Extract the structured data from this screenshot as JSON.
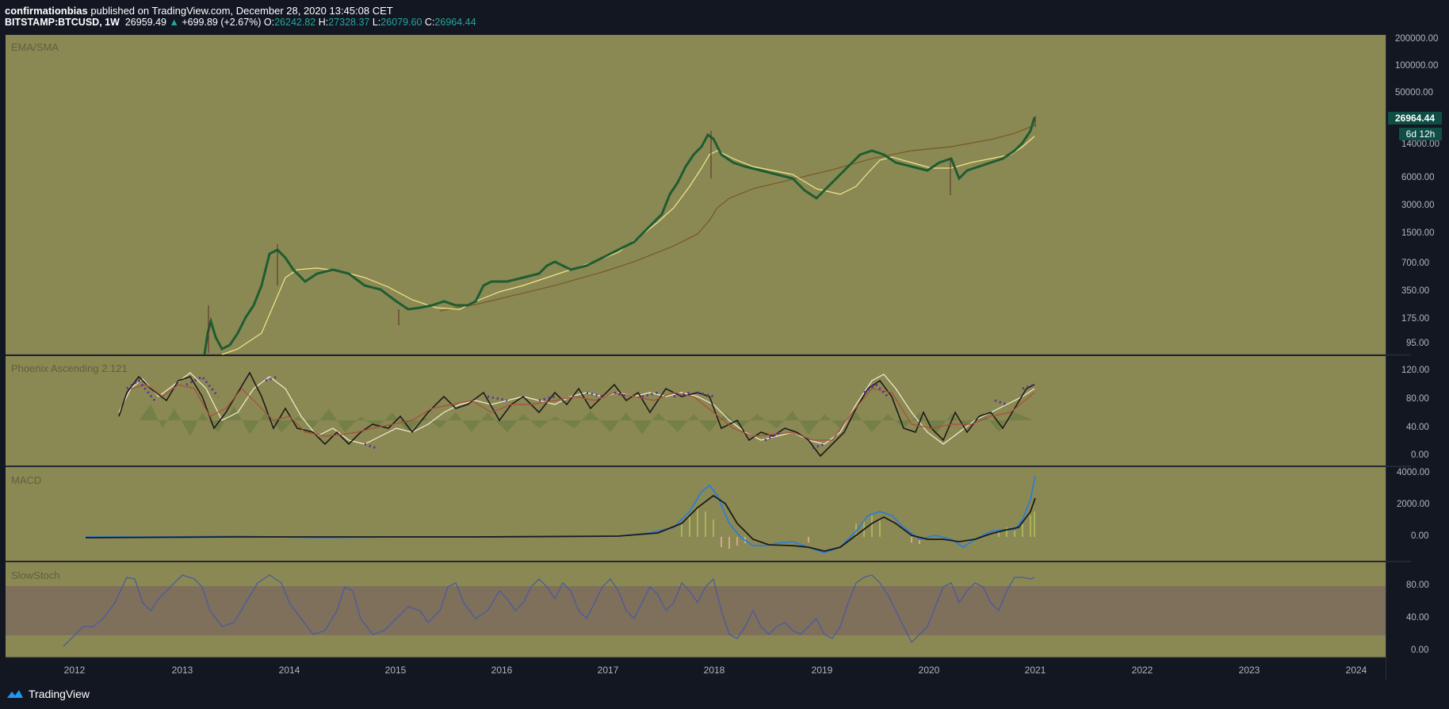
{
  "header": {
    "author": "confirmationbias",
    "published_text": "published on TradingView.com, December 28, 2020 13:45:08 CET",
    "symbol": "BITSTAMP:BTCUSD, 1W",
    "last": "26959.49",
    "change_arrow": "▲",
    "change": "+699.89 (+2.67%)",
    "open_label": "O:",
    "open": "26242.82",
    "high_label": "H:",
    "high": "27328.37",
    "low_label": "L:",
    "low": "26079.60",
    "close_label": "C:",
    "close": "26964.44"
  },
  "panes": {
    "main": {
      "title": "EMA/SMA",
      "price_label": "26964.44",
      "countdown": "6d 12h",
      "y_ticks": [
        "200000.00",
        "100000.00",
        "50000.00",
        "14000.00",
        "6000.00",
        "3000.00",
        "1500.00",
        "700.00",
        "350.00",
        "175.00",
        "95.00"
      ]
    },
    "phoenix": {
      "title": "Phoenix Ascending 2.121",
      "y_ticks": [
        "120.00",
        "80.00",
        "40.00",
        "0.00"
      ]
    },
    "macd": {
      "title": "MACD",
      "y_ticks": [
        "4000.00",
        "2000.00",
        "0.00"
      ]
    },
    "stoch": {
      "title": "SlowStoch",
      "y_ticks": [
        "80.00",
        "40.00",
        "0.00"
      ]
    }
  },
  "x_axis": {
    "labels": [
      "2012",
      "2013",
      "2014",
      "2015",
      "2016",
      "2017",
      "2018",
      "2019",
      "2020",
      "2021",
      "2022",
      "2023",
      "2024"
    ]
  },
  "colors": {
    "pane_bg": "#8b8953",
    "candle_up": "#1e6b3a",
    "candle_down": "#7a2e2e",
    "ema": "#f0e68c",
    "sma": "#7a5c2e",
    "stoch_band": "#7c6e5c",
    "macd_line": "#2f7cd6",
    "signal_line": "#1a1a1a"
  },
  "footer": {
    "brand": "TradingView"
  }
}
